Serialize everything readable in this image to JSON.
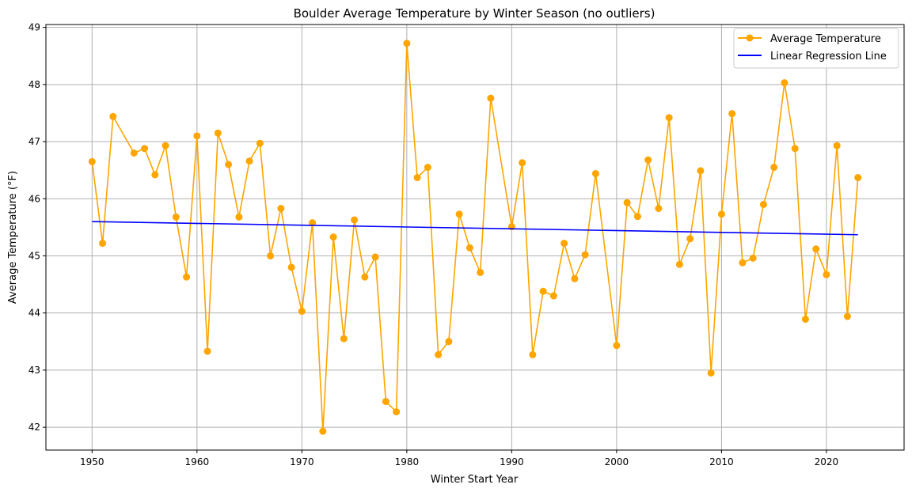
{
  "chart_data": {
    "type": "line",
    "title": "Boulder Average Temperature by Winter Season (no outliers)",
    "xlabel": "Winter Start Year",
    "ylabel": "Average Temperature (°F)",
    "xlim": [
      1945.6,
      2027.4
    ],
    "ylim": [
      41.6,
      49.05
    ],
    "xticks": [
      1950,
      1960,
      1970,
      1980,
      1990,
      2000,
      2010,
      2020
    ],
    "yticks": [
      42,
      43,
      44,
      45,
      46,
      47,
      48,
      49
    ],
    "grid": true,
    "legend_position": "top-right",
    "series": [
      {
        "name": "Average Temperature",
        "color": "#ffa500",
        "marker": "circle",
        "x": [
          1950,
          1951,
          1952,
          1954,
          1955,
          1956,
          1957,
          1958,
          1959,
          1960,
          1961,
          1962,
          1963,
          1964,
          1965,
          1966,
          1967,
          1968,
          1969,
          1970,
          1971,
          1972,
          1973,
          1974,
          1975,
          1976,
          1977,
          1978,
          1979,
          1980,
          1981,
          1982,
          1983,
          1984,
          1985,
          1986,
          1987,
          1988,
          1990,
          1991,
          1992,
          1993,
          1994,
          1995,
          1996,
          1997,
          1998,
          2000,
          2001,
          2002,
          2003,
          2004,
          2005,
          2006,
          2007,
          2008,
          2009,
          2010,
          2011,
          2012,
          2013,
          2014,
          2015,
          2016,
          2017,
          2018,
          2019,
          2020,
          2021,
          2022,
          2023
        ],
        "y": [
          46.65,
          45.22,
          47.44,
          46.8,
          46.88,
          46.42,
          46.93,
          45.68,
          44.63,
          47.1,
          43.33,
          47.15,
          46.6,
          45.68,
          46.66,
          46.97,
          45.0,
          45.83,
          44.8,
          44.03,
          45.58,
          41.93,
          45.33,
          43.55,
          45.63,
          44.63,
          44.98,
          42.45,
          42.27,
          48.72,
          46.37,
          46.55,
          43.27,
          43.5,
          45.73,
          45.14,
          44.71,
          47.76,
          45.51,
          46.63,
          43.27,
          44.38,
          44.3,
          45.22,
          44.6,
          45.02,
          46.44,
          43.43,
          45.93,
          45.69,
          46.68,
          45.83,
          47.42,
          44.85,
          45.3,
          46.49,
          42.95,
          45.73,
          47.49,
          44.88,
          44.96,
          45.9,
          46.55,
          48.03,
          46.88,
          43.89,
          45.12,
          44.67,
          46.93,
          43.94,
          46.37
        ]
      },
      {
        "name": "Linear Regression Line",
        "color": "#0000ff",
        "x": [
          1950,
          2023
        ],
        "y": [
          45.6,
          45.37
        ]
      }
    ]
  }
}
